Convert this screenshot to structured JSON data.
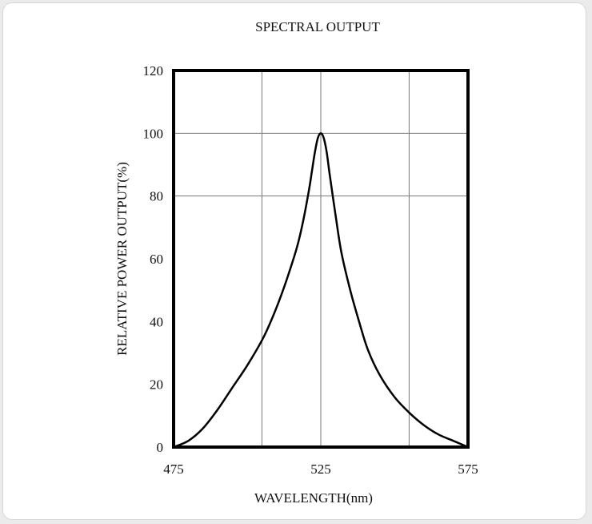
{
  "chart_data": {
    "type": "line",
    "title": "SPECTRAL OUTPUT",
    "xlabel": "WAVELENGTH(nm)",
    "ylabel": "RELATIVE POWER OUTPUT(%)",
    "xlim": [
      475,
      575
    ],
    "ylim": [
      0,
      120
    ],
    "x_ticks": [
      475,
      525,
      575
    ],
    "y_ticks": [
      0,
      20,
      40,
      60,
      80,
      100,
      120
    ],
    "x_gridlines": [
      505,
      525,
      555
    ],
    "y_gridlines": [
      80,
      100
    ],
    "grid": true,
    "series": [
      {
        "color": "#000000",
        "x": [
          475,
          480,
          485,
          490,
          495,
          500,
          505,
          508,
          511,
          514,
          517,
          519,
          521,
          522,
          523,
          524,
          525,
          526,
          527,
          528,
          530,
          532,
          535,
          538,
          541,
          545,
          550,
          555,
          560,
          565,
          570,
          575
        ],
        "y": [
          0,
          2,
          6,
          12,
          19,
          26,
          34,
          40,
          47,
          55,
          64,
          72,
          82,
          88,
          94,
          98.5,
          100,
          98.5,
          94,
          87,
          74,
          62,
          50,
          40,
          31,
          23,
          16,
          11,
          7,
          4,
          2,
          0
        ]
      }
    ]
  }
}
